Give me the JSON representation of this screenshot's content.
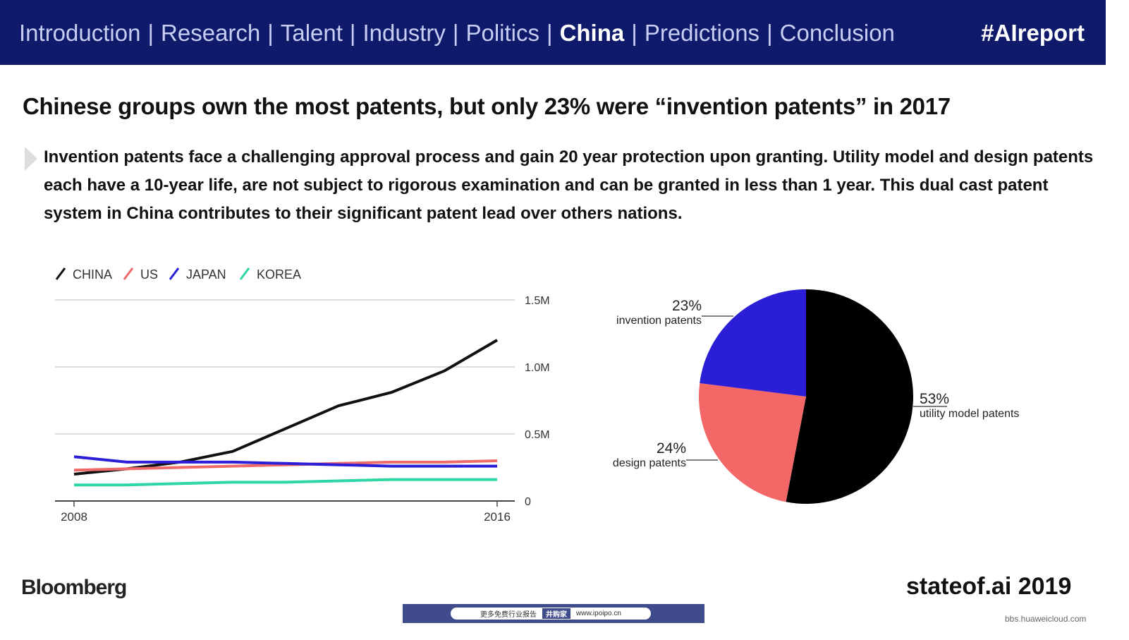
{
  "nav": {
    "items": [
      "Introduction",
      "Research",
      "Talent",
      "Industry",
      "Politics",
      "China",
      "Predictions",
      "Conclusion"
    ],
    "active": "China",
    "tag": "#AIreport"
  },
  "title": "Chinese groups own the most patents, but only 23% were “invention patents” in 2017",
  "description": "Invention patents face a challenging approval process and gain 20 year protection upon granting. Utility model and design patents each have a 10-year life, are not subject to rigorous examination and can be granted in less than 1 year. This dual cast patent system in China contributes to their significant patent lead over others nations.",
  "footer": {
    "source": "Bloomberg",
    "brand": "stateof.ai 2019",
    "watermark": "bbs.huaweicloud.com",
    "banner_text": "更多免费行业报告",
    "banner_brand": "井购家",
    "banner_url": "www.ipoipo.cn"
  },
  "chart_data": [
    {
      "type": "line",
      "x": [
        2008,
        2009,
        2010,
        2011,
        2012,
        2013,
        2014,
        2015,
        2016
      ],
      "xticks": [
        "2008",
        "2016"
      ],
      "yticks": [
        0,
        0.5,
        1.0,
        1.5
      ],
      "ytick_labels": [
        "0",
        "0.5M",
        "1.0M",
        "1.5M"
      ],
      "ylim": [
        0,
        1.5
      ],
      "grid": true,
      "legend": "top-left",
      "series": [
        {
          "name": "CHINA",
          "color": "#111111",
          "values": [
            0.2,
            0.24,
            0.29,
            0.37,
            0.54,
            0.71,
            0.81,
            0.97,
            1.2
          ]
        },
        {
          "name": "US",
          "color": "#f06a6a",
          "values": [
            0.23,
            0.24,
            0.25,
            0.26,
            0.27,
            0.28,
            0.29,
            0.29,
            0.3
          ]
        },
        {
          "name": "JAPAN",
          "color": "#2a1fd6",
          "values": [
            0.33,
            0.29,
            0.29,
            0.29,
            0.28,
            0.27,
            0.26,
            0.26,
            0.26
          ]
        },
        {
          "name": "KOREA",
          "color": "#2fd6a6",
          "values": [
            0.12,
            0.12,
            0.13,
            0.14,
            0.14,
            0.15,
            0.16,
            0.16,
            0.16
          ]
        }
      ]
    },
    {
      "type": "pie",
      "slices": [
        {
          "label": "utility model patents",
          "pct_label": "53%",
          "value": 53,
          "color": "#000000"
        },
        {
          "label": "design patents",
          "pct_label": "24%",
          "value": 24,
          "color": "#f46767"
        },
        {
          "label": "invention patents",
          "pct_label": "23%",
          "value": 23,
          "color": "#2a1fd6"
        }
      ]
    }
  ]
}
